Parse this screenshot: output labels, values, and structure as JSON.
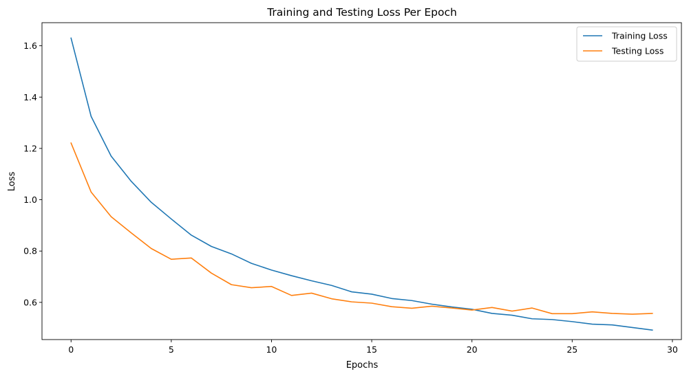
{
  "chart_data": {
    "type": "line",
    "title": "Training and Testing Loss Per Epoch",
    "xlabel": "Epochs",
    "ylabel": "Loss",
    "xlim": [
      -1.45,
      30.45
    ],
    "ylim": [
      0.455,
      1.69
    ],
    "x_ticks": [
      0,
      5,
      10,
      15,
      20,
      25,
      30
    ],
    "y_ticks": [
      0.6,
      0.8,
      1.0,
      1.2,
      1.4,
      1.6
    ],
    "grid": false,
    "legend_position": "top-right",
    "x": [
      0,
      1,
      2,
      3,
      4,
      5,
      6,
      7,
      8,
      9,
      10,
      11,
      12,
      13,
      14,
      15,
      16,
      17,
      18,
      19,
      20,
      21,
      22,
      23,
      24,
      25,
      26,
      27,
      28,
      29
    ],
    "series": [
      {
        "name": "Training Loss",
        "color": "#1f77b4",
        "values": [
          1.63,
          1.325,
          1.17,
          1.072,
          0.99,
          0.925,
          0.862,
          0.818,
          0.789,
          0.752,
          0.726,
          0.704,
          0.684,
          0.666,
          0.641,
          0.632,
          0.615,
          0.607,
          0.593,
          0.582,
          0.573,
          0.557,
          0.55,
          0.536,
          0.533,
          0.525,
          0.515,
          0.512,
          0.502,
          0.492
        ]
      },
      {
        "name": "Testing Loss",
        "color": "#ff7f0e",
        "values": [
          1.221,
          1.03,
          0.934,
          0.871,
          0.81,
          0.768,
          0.773,
          0.714,
          0.669,
          0.657,
          0.662,
          0.627,
          0.636,
          0.614,
          0.602,
          0.597,
          0.583,
          0.577,
          0.585,
          0.578,
          0.57,
          0.58,
          0.566,
          0.578,
          0.556,
          0.556,
          0.563,
          0.557,
          0.554,
          0.557
        ]
      }
    ]
  }
}
